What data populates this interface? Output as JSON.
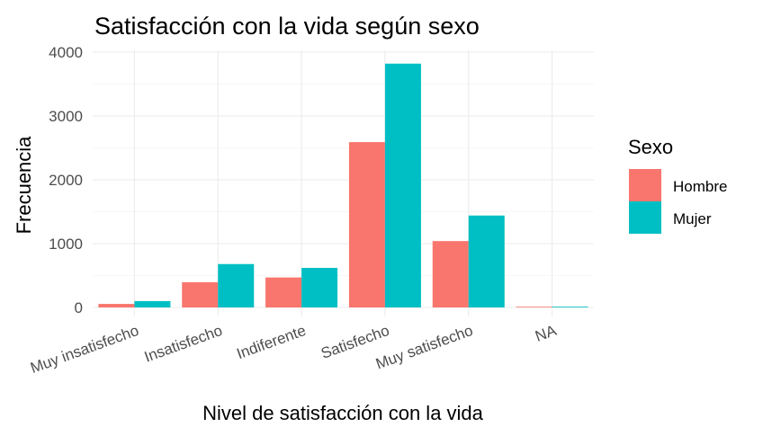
{
  "chart_data": {
    "type": "bar",
    "title": "Satisfacción con la vida según sexo",
    "xlabel": "Nivel de satisfacción con la vida",
    "ylabel": "Frecuencia",
    "categories": [
      "Muy insatisfecho",
      "Insatisfecho",
      "Indiferente",
      "Satisfecho",
      "Muy satisfecho",
      "NA"
    ],
    "series": [
      {
        "name": "Hombre",
        "color": "#F8766D",
        "values": [
          55,
          395,
          470,
          2590,
          1040,
          10
        ]
      },
      {
        "name": "Mujer",
        "color": "#00BFC4",
        "values": [
          100,
          680,
          620,
          3820,
          1440,
          12
        ]
      }
    ],
    "ylim": [
      0,
      4000
    ],
    "yticks": [
      0,
      1000,
      2000,
      3000,
      4000
    ],
    "ytick_labels": [
      "0",
      "1000",
      "2000",
      "3000",
      "4000"
    ],
    "grid": true,
    "legend": {
      "title": "Sexo",
      "position": "right"
    }
  }
}
